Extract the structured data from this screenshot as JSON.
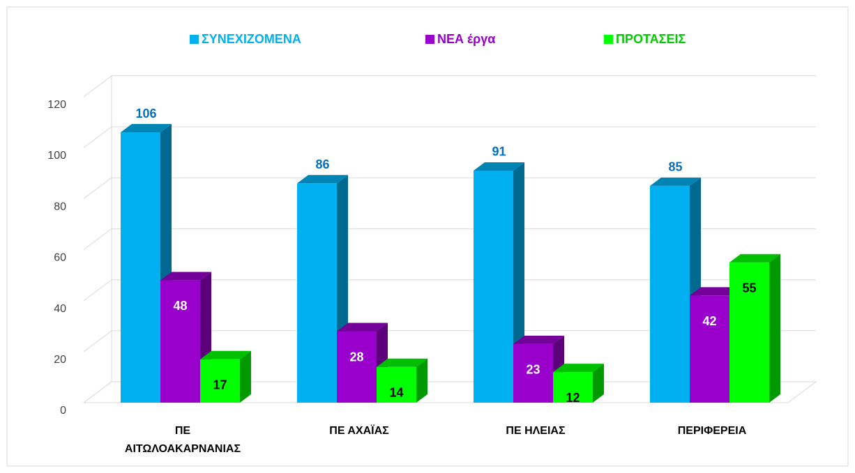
{
  "chart_data": {
    "type": "bar3d",
    "categories": [
      "ΠΕ ΑΙΤΩΛΟΑΚΑΡΝΑΝΙΑΣ",
      "ΠΕ ΑΧΑΪΑΣ",
      "ΠΕ ΗΛΕΙΑΣ",
      "ΠΕΡΙΦΕΡΕΙΑ"
    ],
    "series": [
      {
        "name": "ΣΥΝΕΧΙΖΟΜΕΝΑ",
        "color": "#00b0f0",
        "values": [
          106,
          86,
          91,
          85
        ]
      },
      {
        "name": "ΝΕΑ έργα",
        "color": "#9900cc",
        "values": [
          48,
          28,
          23,
          42
        ]
      },
      {
        "name": "ΠΡΟΤΑΣΕΙΣ",
        "color": "#00ff00",
        "values": [
          17,
          14,
          12,
          55
        ]
      }
    ],
    "ylim": [
      0,
      120
    ],
    "yticks": [
      0,
      20,
      40,
      60,
      80,
      100,
      120
    ],
    "grid": true,
    "legend": "top"
  }
}
